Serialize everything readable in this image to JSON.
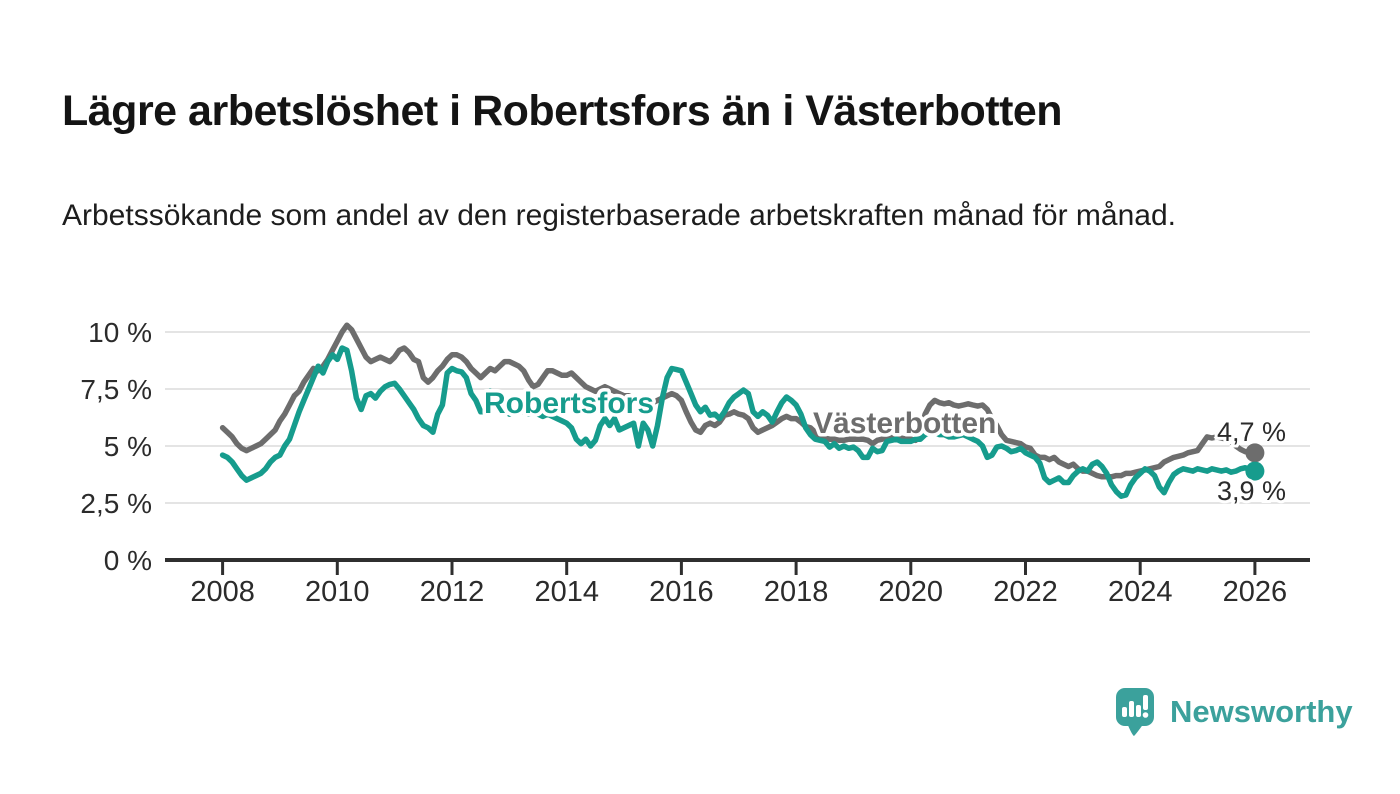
{
  "header": {
    "title": "Lägre arbetslöshet i Robertsfors än i Västerbotten",
    "subtitle": "Arbetssökande som andel av den registerbaserade arbetskraften månad för månad."
  },
  "chart_data": {
    "type": "line",
    "title": "Lägre arbetslöshet i Robertsfors än i Västerbotten",
    "unit": "percent of registered labour force",
    "frequency": "monthly",
    "x_start_year": 2008,
    "x_end": "2026-01",
    "grid": "horizontal-on",
    "legend_position": "inline-labels-on-lines",
    "x_axis": {
      "tick_labels": [
        "2008",
        "2010",
        "2012",
        "2014",
        "2016",
        "2018",
        "2020",
        "2022",
        "2024",
        "2026"
      ],
      "tick_years": [
        2008,
        2010,
        2012,
        2014,
        2016,
        2018,
        2020,
        2022,
        2024,
        2026
      ],
      "range": [
        2007.0,
        2027.0
      ]
    },
    "y_axis": {
      "ticks": [
        {
          "value": 0,
          "label": "0 %"
        },
        {
          "value": 2.5,
          "label": "2,5 %"
        },
        {
          "value": 5,
          "label": "5 %"
        },
        {
          "value": 7.5,
          "label": "7,5 %"
        },
        {
          "value": 10,
          "label": "10 %"
        }
      ],
      "range": [
        0,
        10.5
      ]
    },
    "series": [
      {
        "name": "Västerbotten",
        "color": "#6d6d6d",
        "end_label": "4,7 %",
        "values": [
          5.8,
          5.6,
          5.4,
          5.1,
          4.9,
          4.8,
          4.9,
          5.0,
          5.1,
          5.3,
          5.5,
          5.7,
          6.1,
          6.4,
          6.8,
          7.2,
          7.4,
          7.8,
          8.1,
          8.4,
          8.3,
          8.5,
          8.8,
          9.2,
          9.6,
          10.0,
          10.3,
          10.1,
          9.7,
          9.3,
          8.9,
          8.7,
          8.8,
          8.9,
          8.8,
          8.7,
          8.9,
          9.2,
          9.3,
          9.1,
          8.8,
          8.7,
          8.0,
          7.8,
          8.0,
          8.3,
          8.5,
          8.8,
          9.0,
          9.0,
          8.9,
          8.7,
          8.4,
          8.2,
          8.0,
          8.2,
          8.4,
          8.3,
          8.5,
          8.7,
          8.7,
          8.6,
          8.5,
          8.3,
          7.9,
          7.6,
          7.7,
          8.0,
          8.3,
          8.3,
          8.2,
          8.1,
          8.1,
          8.2,
          8.0,
          7.8,
          7.6,
          7.5,
          7.4,
          7.5,
          7.6,
          7.5,
          7.4,
          7.3,
          7.2,
          7.2,
          7.1,
          7.0,
          6.9,
          6.9,
          6.9,
          7.0,
          7.1,
          7.2,
          7.3,
          7.2,
          7.0,
          6.5,
          6.05,
          5.7,
          5.6,
          5.9,
          6.0,
          5.9,
          6.05,
          6.35,
          6.4,
          6.5,
          6.4,
          6.35,
          6.2,
          5.8,
          5.6,
          5.7,
          5.8,
          5.9,
          6.05,
          6.2,
          6.3,
          6.2,
          6.2,
          6.05,
          5.85,
          5.8,
          5.6,
          5.4,
          5.35,
          5.3,
          5.3,
          5.25,
          5.25,
          5.3,
          5.3,
          5.3,
          5.3,
          5.25,
          5.1,
          5.25,
          5.3,
          5.4,
          5.5,
          5.4,
          5.35,
          5.3,
          5.3,
          5.25,
          5.5,
          6.4,
          6.8,
          7.0,
          6.9,
          6.85,
          6.9,
          6.8,
          6.75,
          6.8,
          6.85,
          6.8,
          6.75,
          6.8,
          6.6,
          6.2,
          5.9,
          5.5,
          5.25,
          5.2,
          5.15,
          5.1,
          4.95,
          4.9,
          4.6,
          4.5,
          4.5,
          4.4,
          4.5,
          4.3,
          4.2,
          4.1,
          4.2,
          4.0,
          3.9,
          3.9,
          3.8,
          3.7,
          3.65,
          3.65,
          3.65,
          3.7,
          3.7,
          3.8,
          3.8,
          3.85,
          3.9,
          3.95,
          4.0,
          4.05,
          4.1,
          4.3,
          4.4,
          4.5,
          4.55,
          4.6,
          4.7,
          4.75,
          4.8,
          5.1,
          5.4,
          5.35,
          5.4,
          5.35,
          5.3,
          5.2,
          5.0,
          4.85,
          4.75,
          4.75,
          4.7
        ]
      },
      {
        "name": "Robertsfors",
        "color": "#169c8d",
        "end_label": "3,9 %",
        "values": [
          4.6,
          4.5,
          4.3,
          4.0,
          3.7,
          3.5,
          3.6,
          3.7,
          3.8,
          4.0,
          4.3,
          4.5,
          4.6,
          5.0,
          5.3,
          5.9,
          6.5,
          7.0,
          7.5,
          8.0,
          8.5,
          8.2,
          8.7,
          9.0,
          8.8,
          9.3,
          9.2,
          8.3,
          7.1,
          6.6,
          7.2,
          7.3,
          7.1,
          7.4,
          7.6,
          7.7,
          7.75,
          7.5,
          7.2,
          6.9,
          6.6,
          6.2,
          5.9,
          5.8,
          5.6,
          6.4,
          6.8,
          8.2,
          8.4,
          8.3,
          8.25,
          8.0,
          7.3,
          7.0,
          6.5,
          6.5,
          7.4,
          7.2,
          6.9,
          6.6,
          6.4,
          6.5,
          6.6,
          6.5,
          6.4,
          6.5,
          6.4,
          6.3,
          6.4,
          6.3,
          6.2,
          6.1,
          6.0,
          5.8,
          5.3,
          5.1,
          5.3,
          5.0,
          5.25,
          5.9,
          6.2,
          5.9,
          6.2,
          5.7,
          5.8,
          5.9,
          6.0,
          5.0,
          6.0,
          5.7,
          5.0,
          5.9,
          7.1,
          8.0,
          8.4,
          8.35,
          8.3,
          7.8,
          7.3,
          6.8,
          6.5,
          6.7,
          6.35,
          6.4,
          6.2,
          6.5,
          6.9,
          7.15,
          7.3,
          7.45,
          7.3,
          6.5,
          6.3,
          6.5,
          6.35,
          6.05,
          6.5,
          6.9,
          7.15,
          7.0,
          6.8,
          6.4,
          5.8,
          5.5,
          5.3,
          5.25,
          5.2,
          4.95,
          5.1,
          4.9,
          5.0,
          4.9,
          4.95,
          4.8,
          4.5,
          4.5,
          4.9,
          4.75,
          4.8,
          5.2,
          5.25,
          5.3,
          5.2,
          5.2,
          5.2,
          5.3,
          5.3,
          5.5,
          5.6,
          5.6,
          5.5,
          5.5,
          5.4,
          5.4,
          5.45,
          5.5,
          5.4,
          5.3,
          5.2,
          5.0,
          4.5,
          4.6,
          4.95,
          5.0,
          4.9,
          4.75,
          4.8,
          4.9,
          4.7,
          4.6,
          4.5,
          4.25,
          3.6,
          3.4,
          3.5,
          3.6,
          3.4,
          3.4,
          3.7,
          3.9,
          4.0,
          3.9,
          4.2,
          4.3,
          4.1,
          3.8,
          3.3,
          3.0,
          2.8,
          2.85,
          3.3,
          3.6,
          3.8,
          4.0,
          3.9,
          3.7,
          3.2,
          2.95,
          3.4,
          3.75,
          3.9,
          4.0,
          3.95,
          3.9,
          4.0,
          3.95,
          3.9,
          4.0,
          3.95,
          3.9,
          3.95,
          3.85,
          3.9,
          4.0,
          4.05,
          3.95,
          3.9
        ]
      }
    ],
    "colors": {
      "grid": "#dcdcdc",
      "axis": "#2f2f2f",
      "tick_text": "#2b2b2b",
      "annotation_text": "#2b2b2b"
    }
  },
  "footer": {
    "brand": "Newsworthy"
  }
}
